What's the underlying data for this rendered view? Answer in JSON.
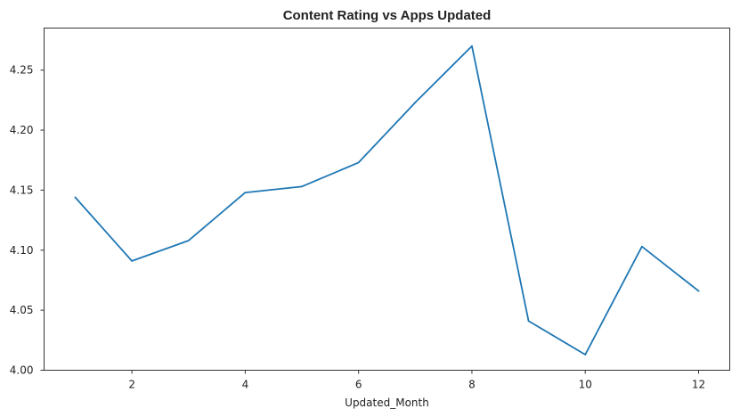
{
  "chart_data": {
    "type": "line",
    "title": "Content Rating vs Apps Updated",
    "xlabel": "Updated_Month",
    "ylabel": "",
    "xlim": [
      0.45,
      12.55
    ],
    "ylim": [
      4.0,
      4.285
    ],
    "x_ticks": [
      2,
      4,
      6,
      8,
      10,
      12
    ],
    "y_ticks": [
      4.0,
      4.05,
      4.1,
      4.15,
      4.2,
      4.25
    ],
    "x_tick_labels": [
      "2",
      "4",
      "6",
      "8",
      "10",
      "12"
    ],
    "y_tick_labels": [
      "4.00",
      "4.05",
      "4.10",
      "4.15",
      "4.20",
      "4.25"
    ],
    "grid": false,
    "legend": "none",
    "series": [
      {
        "color": "#1f77b4",
        "x": [
          1,
          2,
          3,
          4,
          5,
          6,
          7,
          8,
          9,
          10,
          11,
          12
        ],
        "y": [
          4.144,
          4.091,
          4.108,
          4.148,
          4.153,
          4.173,
          4.223,
          4.27,
          4.041,
          4.013,
          4.103,
          4.066
        ]
      }
    ]
  }
}
